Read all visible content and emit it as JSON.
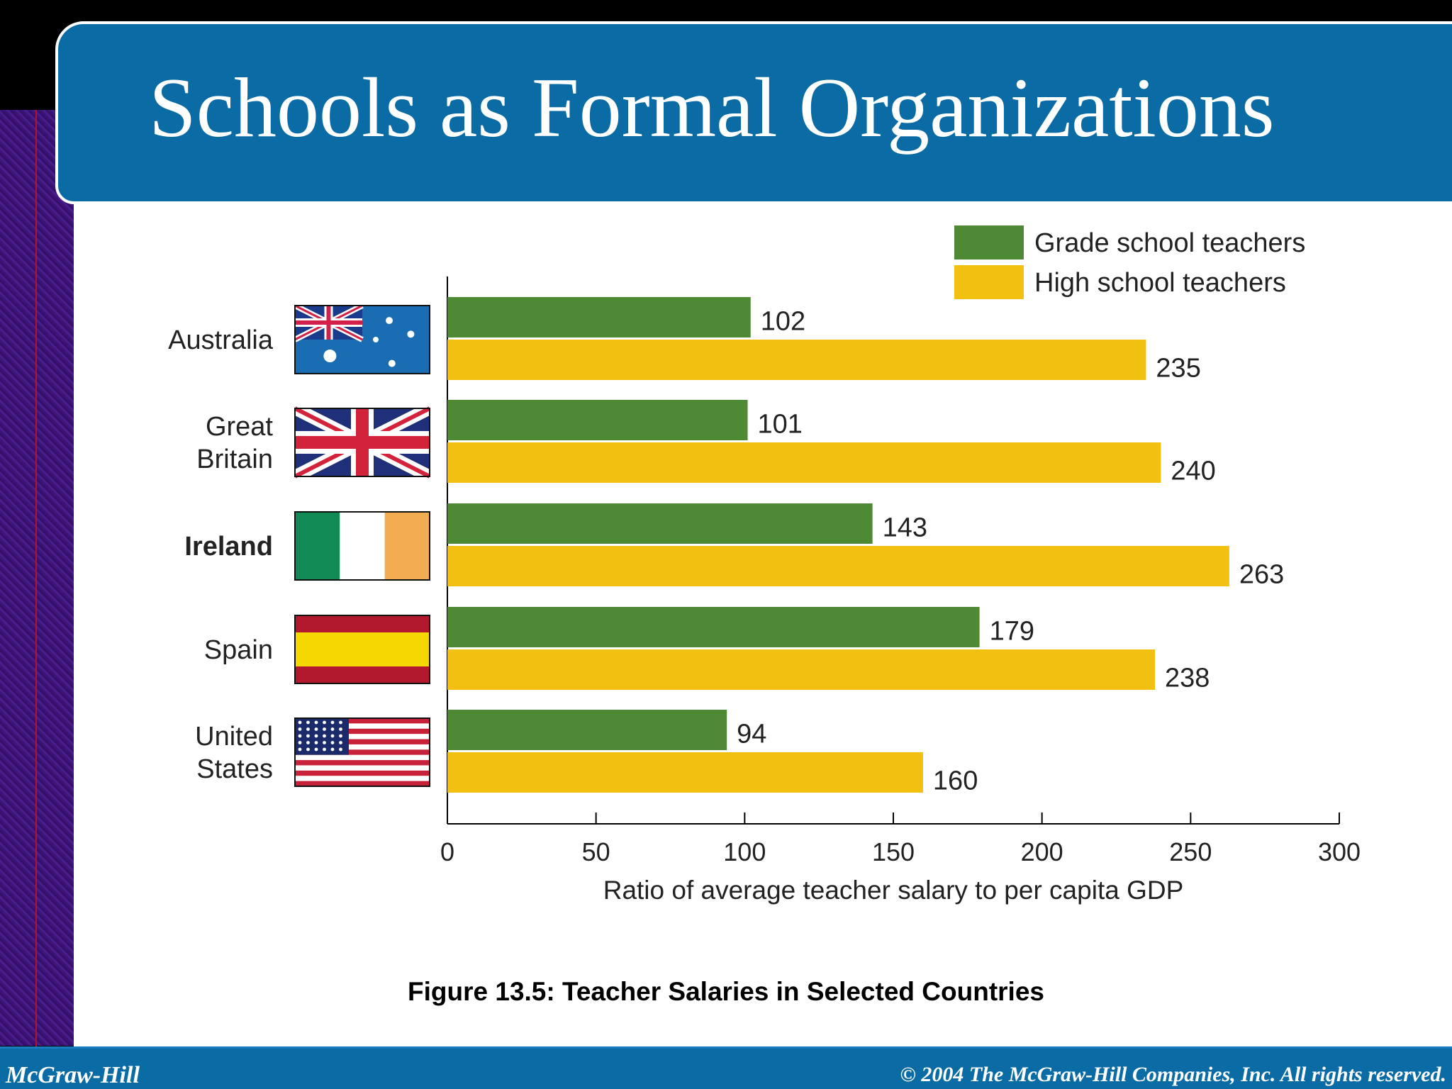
{
  "slide": {
    "title": "Schools as Formal Organizations",
    "caption": "Figure 13.5: Teacher Salaries in Selected Countries",
    "footer_left": "McGraw-Hill",
    "footer_right": "© 2004 The McGraw-Hill Companies, Inc. All rights reserved."
  },
  "colors": {
    "banner": "#0a6ba5",
    "grade": "#4e8a34",
    "high": "#f2c010"
  },
  "chart_data": {
    "type": "bar",
    "orientation": "horizontal",
    "categories": [
      {
        "lines": [
          "Australia"
        ],
        "flag": "australia-flag-icon"
      },
      {
        "lines": [
          "Great",
          "Britain"
        ],
        "flag": "great-britain-flag-icon"
      },
      {
        "lines": [
          "Ireland"
        ],
        "flag": "ireland-flag-icon"
      },
      {
        "lines": [
          "Spain"
        ],
        "flag": "spain-flag-icon"
      },
      {
        "lines": [
          "United",
          "States"
        ],
        "flag": "united-states-flag-icon"
      }
    ],
    "series": [
      {
        "name": "Grade school teachers",
        "values": [
          102,
          101,
          143,
          179,
          94
        ]
      },
      {
        "name": "High school teachers",
        "values": [
          235,
          240,
          263,
          238,
          160
        ]
      }
    ],
    "xlabel": "Ratio of average teacher salary to per capita GDP",
    "xlim": [
      0,
      300
    ],
    "xticks": [
      "0",
      "50",
      "100",
      "150",
      "200",
      "250",
      "300"
    ],
    "legend_position": "top-right",
    "grid": false
  }
}
